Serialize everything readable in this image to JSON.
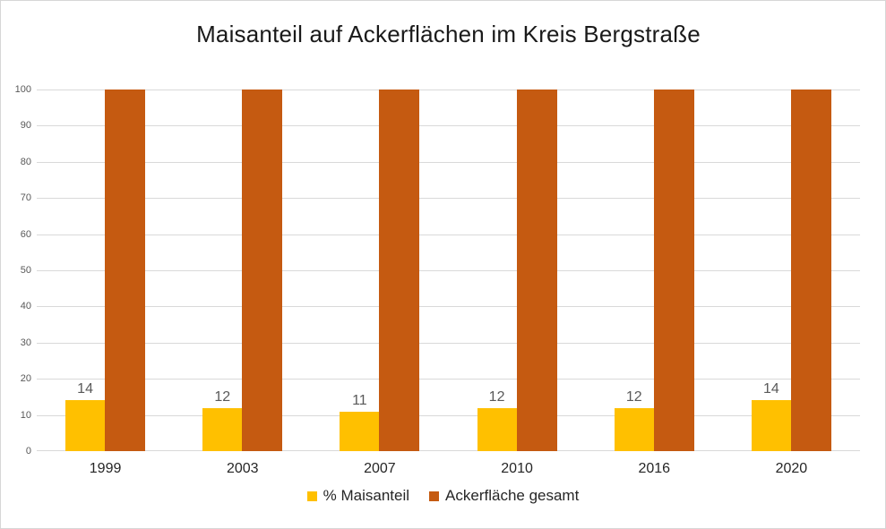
{
  "chart_data": {
    "type": "bar",
    "title": "Maisanteil auf Ackerflächen im Kreis Bergstraße",
    "categories": [
      "1999",
      "2003",
      "2007",
      "2010",
      "2016",
      "2020"
    ],
    "series": [
      {
        "name": "% Maisanteil",
        "color": "#FFC000",
        "values": [
          14,
          12,
          11,
          12,
          12,
          14
        ],
        "data_labels": [
          "14",
          "12",
          "11",
          "12",
          "12",
          "14"
        ],
        "show_labels": true
      },
      {
        "name": "Ackerfläche gesamt",
        "color": "#C55A11",
        "values": [
          100,
          100,
          100,
          100,
          100,
          100
        ],
        "show_labels": false
      }
    ],
    "xlabel": "",
    "ylabel": "",
    "ylim": [
      0,
      100
    ],
    "ytick_labels": [
      "0",
      "10",
      "20",
      "30",
      "40",
      "50",
      "60",
      "70",
      "80",
      "90",
      "100"
    ],
    "grid": true,
    "legend_position": "bottom"
  },
  "legend": {
    "items": [
      {
        "label": "% Maisanteil",
        "color": "#FFC000"
      },
      {
        "label": "Ackerfläche gesamt",
        "color": "#C55A11"
      }
    ]
  },
  "style_colors": {
    "gridline": "#D9D9D9",
    "axis_text": "#595959",
    "data_label_text": "#595959",
    "category_text": "#262626",
    "title_text": "#1A1A1A"
  }
}
